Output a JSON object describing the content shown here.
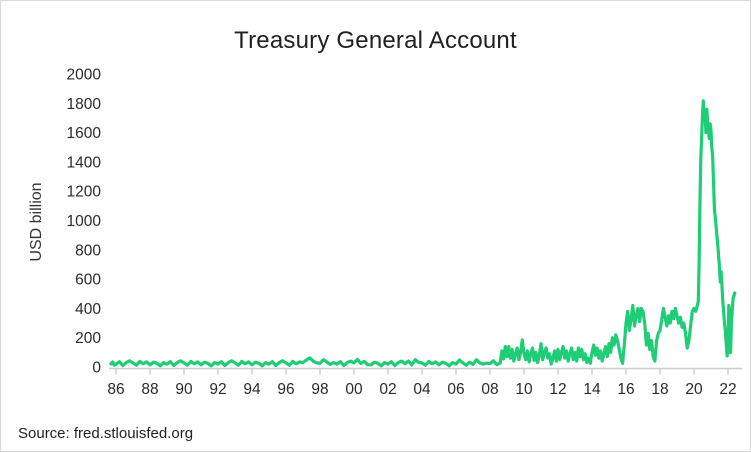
{
  "source": "Source: fred.stlouisfed.org",
  "colors": {
    "line_green": "#20cd77",
    "axis_gray": "#cccccc",
    "text_dark": "#2b2b2b",
    "background": "#ffffff"
  },
  "chart_data": {
    "type": "line",
    "title": "Treasury General Account",
    "xlabel": "",
    "ylabel": "USD billion",
    "ylim": [
      0,
      2000
    ],
    "xlim": [
      1985.7,
      2022.9
    ],
    "grid": false,
    "legend": null,
    "y_ticks": [
      0,
      200,
      400,
      600,
      800,
      1000,
      1200,
      1400,
      1600,
      1800,
      2000
    ],
    "x_tick_years": [
      1986,
      1988,
      1990,
      1992,
      1994,
      1996,
      1998,
      2000,
      2002,
      2004,
      2006,
      2008,
      2010,
      2012,
      2014,
      2016,
      2018,
      2020,
      2022
    ],
    "x_ticks": [
      "86",
      "88",
      "90",
      "92",
      "94",
      "96",
      "98",
      "00",
      "02",
      "04",
      "06",
      "08",
      "10",
      "12",
      "14",
      "16",
      "18",
      "20",
      "22"
    ],
    "series": [
      {
        "name": "Treasury General Account (USD billion)",
        "points": [
          [
            1985.7,
            22
          ],
          [
            1985.8,
            35
          ],
          [
            1985.9,
            12
          ],
          [
            1986.0,
            20
          ],
          [
            1986.2,
            36
          ],
          [
            1986.4,
            10
          ],
          [
            1986.6,
            30
          ],
          [
            1986.8,
            42
          ],
          [
            1987.0,
            28
          ],
          [
            1987.2,
            12
          ],
          [
            1987.4,
            38
          ],
          [
            1987.6,
            22
          ],
          [
            1987.8,
            35
          ],
          [
            1988.0,
            15
          ],
          [
            1988.2,
            33
          ],
          [
            1988.4,
            25
          ],
          [
            1988.6,
            8
          ],
          [
            1988.8,
            30
          ],
          [
            1989.0,
            20
          ],
          [
            1989.2,
            36
          ],
          [
            1989.4,
            10
          ],
          [
            1989.6,
            30
          ],
          [
            1989.8,
            42
          ],
          [
            1990.0,
            28
          ],
          [
            1990.2,
            12
          ],
          [
            1990.4,
            38
          ],
          [
            1990.6,
            22
          ],
          [
            1990.8,
            35
          ],
          [
            1991.0,
            15
          ],
          [
            1991.2,
            33
          ],
          [
            1991.4,
            25
          ],
          [
            1991.6,
            8
          ],
          [
            1991.8,
            30
          ],
          [
            1992.0,
            20
          ],
          [
            1992.2,
            36
          ],
          [
            1992.4,
            10
          ],
          [
            1992.6,
            30
          ],
          [
            1992.8,
            42
          ],
          [
            1993.0,
            28
          ],
          [
            1993.2,
            12
          ],
          [
            1993.4,
            38
          ],
          [
            1993.6,
            22
          ],
          [
            1993.8,
            35
          ],
          [
            1994.0,
            15
          ],
          [
            1994.2,
            33
          ],
          [
            1994.4,
            25
          ],
          [
            1994.6,
            8
          ],
          [
            1994.8,
            30
          ],
          [
            1995.0,
            20
          ],
          [
            1995.2,
            36
          ],
          [
            1995.4,
            10
          ],
          [
            1995.6,
            30
          ],
          [
            1995.8,
            42
          ],
          [
            1996.0,
            28
          ],
          [
            1996.2,
            12
          ],
          [
            1996.4,
            38
          ],
          [
            1996.6,
            22
          ],
          [
            1996.8,
            35
          ],
          [
            1997.0,
            30
          ],
          [
            1997.2,
            48
          ],
          [
            1997.4,
            62
          ],
          [
            1997.6,
            40
          ],
          [
            1997.8,
            28
          ],
          [
            1998.0,
            25
          ],
          [
            1998.2,
            50
          ],
          [
            1998.4,
            35
          ],
          [
            1998.6,
            18
          ],
          [
            1998.8,
            30
          ],
          [
            1999.0,
            20
          ],
          [
            1999.2,
            36
          ],
          [
            1999.4,
            10
          ],
          [
            1999.6,
            30
          ],
          [
            1999.8,
            40
          ],
          [
            2000.0,
            28
          ],
          [
            2000.2,
            52
          ],
          [
            2000.4,
            24
          ],
          [
            2000.6,
            38
          ],
          [
            2000.8,
            16
          ],
          [
            2001.0,
            15
          ],
          [
            2001.2,
            33
          ],
          [
            2001.4,
            25
          ],
          [
            2001.6,
            8
          ],
          [
            2001.8,
            30
          ],
          [
            2002.0,
            20
          ],
          [
            2002.2,
            36
          ],
          [
            2002.4,
            10
          ],
          [
            2002.6,
            30
          ],
          [
            2002.8,
            40
          ],
          [
            2003.0,
            22
          ],
          [
            2003.2,
            40
          ],
          [
            2003.4,
            14
          ],
          [
            2003.6,
            50
          ],
          [
            2003.8,
            32
          ],
          [
            2004.0,
            28
          ],
          [
            2004.2,
            12
          ],
          [
            2004.4,
            38
          ],
          [
            2004.6,
            22
          ],
          [
            2004.8,
            35
          ],
          [
            2005.0,
            15
          ],
          [
            2005.2,
            33
          ],
          [
            2005.4,
            25
          ],
          [
            2005.6,
            8
          ],
          [
            2005.8,
            30
          ],
          [
            2006.0,
            20
          ],
          [
            2006.2,
            48
          ],
          [
            2006.4,
            28
          ],
          [
            2006.6,
            12
          ],
          [
            2006.8,
            33
          ],
          [
            2007.0,
            18
          ],
          [
            2007.2,
            50
          ],
          [
            2007.4,
            28
          ],
          [
            2007.6,
            20
          ],
          [
            2007.8,
            26
          ],
          [
            2008.0,
            24
          ],
          [
            2008.2,
            42
          ],
          [
            2008.4,
            16
          ],
          [
            2008.6,
            28
          ],
          [
            2008.7,
            110
          ],
          [
            2008.8,
            55
          ],
          [
            2008.9,
            140
          ],
          [
            2009.0,
            70
          ],
          [
            2009.1,
            140
          ],
          [
            2009.2,
            60
          ],
          [
            2009.3,
            120
          ],
          [
            2009.4,
            40
          ],
          [
            2009.5,
            90
          ],
          [
            2009.6,
            130
          ],
          [
            2009.7,
            50
          ],
          [
            2009.8,
            100
          ],
          [
            2009.9,
            185
          ],
          [
            2010.0,
            90
          ],
          [
            2010.1,
            50
          ],
          [
            2010.2,
            110
          ],
          [
            2010.3,
            35
          ],
          [
            2010.4,
            90
          ],
          [
            2010.5,
            130
          ],
          [
            2010.6,
            45
          ],
          [
            2010.7,
            100
          ],
          [
            2010.8,
            30
          ],
          [
            2010.9,
            80
          ],
          [
            2011.0,
            160
          ],
          [
            2011.1,
            50
          ],
          [
            2011.2,
            100
          ],
          [
            2011.3,
            130
          ],
          [
            2011.4,
            60
          ],
          [
            2011.5,
            90
          ],
          [
            2011.6,
            20
          ],
          [
            2011.7,
            60
          ],
          [
            2011.8,
            110
          ],
          [
            2011.9,
            40
          ],
          [
            2012.0,
            120
          ],
          [
            2012.1,
            50
          ],
          [
            2012.2,
            100
          ],
          [
            2012.3,
            140
          ],
          [
            2012.4,
            60
          ],
          [
            2012.5,
            110
          ],
          [
            2012.6,
            40
          ],
          [
            2012.7,
            90
          ],
          [
            2012.8,
            130
          ],
          [
            2012.9,
            50
          ],
          [
            2013.0,
            100
          ],
          [
            2013.1,
            40
          ],
          [
            2013.2,
            130
          ],
          [
            2013.3,
            70
          ],
          [
            2013.4,
            120
          ],
          [
            2013.5,
            50
          ],
          [
            2013.6,
            90
          ],
          [
            2013.7,
            30
          ],
          [
            2013.8,
            60
          ],
          [
            2013.9,
            25
          ],
          [
            2014.0,
            100
          ],
          [
            2014.1,
            150
          ],
          [
            2014.2,
            80
          ],
          [
            2014.3,
            130
          ],
          [
            2014.4,
            60
          ],
          [
            2014.5,
            110
          ],
          [
            2014.6,
            40
          ],
          [
            2014.7,
            90
          ],
          [
            2014.8,
            140
          ],
          [
            2014.9,
            70
          ],
          [
            2015.0,
            160
          ],
          [
            2015.1,
            100
          ],
          [
            2015.2,
            200
          ],
          [
            2015.3,
            150
          ],
          [
            2015.4,
            220
          ],
          [
            2015.5,
            180
          ],
          [
            2015.6,
            120
          ],
          [
            2015.7,
            60
          ],
          [
            2015.8,
            25
          ],
          [
            2015.9,
            150
          ],
          [
            2016.0,
            300
          ],
          [
            2016.1,
            380
          ],
          [
            2016.2,
            250
          ],
          [
            2016.3,
            330
          ],
          [
            2016.4,
            420
          ],
          [
            2016.5,
            280
          ],
          [
            2016.6,
            350
          ],
          [
            2016.7,
            400
          ],
          [
            2016.8,
            310
          ],
          [
            2016.9,
            400
          ],
          [
            2017.0,
            380
          ],
          [
            2017.1,
            300
          ],
          [
            2017.2,
            150
          ],
          [
            2017.3,
            230
          ],
          [
            2017.4,
            120
          ],
          [
            2017.5,
            180
          ],
          [
            2017.6,
            70
          ],
          [
            2017.7,
            40
          ],
          [
            2017.8,
            180
          ],
          [
            2017.9,
            230
          ],
          [
            2018.0,
            250
          ],
          [
            2018.1,
            320
          ],
          [
            2018.2,
            400
          ],
          [
            2018.3,
            340
          ],
          [
            2018.4,
            280
          ],
          [
            2018.5,
            350
          ],
          [
            2018.6,
            300
          ],
          [
            2018.7,
            380
          ],
          [
            2018.8,
            330
          ],
          [
            2018.9,
            400
          ],
          [
            2019.0,
            350
          ],
          [
            2019.1,
            300
          ],
          [
            2019.2,
            340
          ],
          [
            2019.3,
            270
          ],
          [
            2019.4,
            300
          ],
          [
            2019.5,
            230
          ],
          [
            2019.6,
            130
          ],
          [
            2019.7,
            180
          ],
          [
            2019.8,
            280
          ],
          [
            2019.9,
            380
          ],
          [
            2020.0,
            400
          ],
          [
            2020.1,
            380
          ],
          [
            2020.2,
            420
          ],
          [
            2020.25,
            450
          ],
          [
            2020.3,
            700
          ],
          [
            2020.35,
            1100
          ],
          [
            2020.4,
            1420
          ],
          [
            2020.5,
            1720
          ],
          [
            2020.55,
            1817
          ],
          [
            2020.6,
            1690
          ],
          [
            2020.65,
            1740
          ],
          [
            2020.7,
            1600
          ],
          [
            2020.75,
            1760
          ],
          [
            2020.8,
            1680
          ],
          [
            2020.9,
            1560
          ],
          [
            2020.95,
            1660
          ],
          [
            2021.0,
            1610
          ],
          [
            2021.05,
            1500
          ],
          [
            2021.1,
            1430
          ],
          [
            2021.15,
            1250
          ],
          [
            2021.2,
            1080
          ],
          [
            2021.3,
            960
          ],
          [
            2021.4,
            830
          ],
          [
            2021.45,
            750
          ],
          [
            2021.5,
            680
          ],
          [
            2021.55,
            580
          ],
          [
            2021.6,
            650
          ],
          [
            2021.7,
            440
          ],
          [
            2021.8,
            290
          ],
          [
            2021.85,
            250
          ],
          [
            2021.9,
            150
          ],
          [
            2021.95,
            75
          ],
          [
            2022.0,
            140
          ],
          [
            2022.05,
            420
          ],
          [
            2022.1,
            360
          ],
          [
            2022.15,
            100
          ],
          [
            2022.2,
            300
          ],
          [
            2022.3,
            470
          ],
          [
            2022.4,
            505
          ]
        ]
      }
    ]
  }
}
